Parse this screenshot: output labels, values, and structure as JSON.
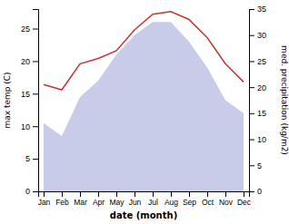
{
  "chart_data": {
    "type": "line",
    "categories": [
      "Jan",
      "Feb",
      "Mar",
      "Apr",
      "May",
      "Jun",
      "Jul",
      "Aug",
      "Sep",
      "Oct",
      "Nov",
      "Dec"
    ],
    "xlabel": "date (month)",
    "ylabel": "max temp (C)",
    "y2label": "med. precipitation (kg/m2)",
    "ylim": [
      0,
      28
    ],
    "yticks": [
      0,
      5,
      10,
      15,
      20,
      25
    ],
    "y2lim": [
      0,
      35
    ],
    "y2ticks": [
      0,
      5,
      10,
      15,
      20,
      25,
      30,
      35
    ],
    "series": [
      {
        "type": "area",
        "color": "#c8cce8",
        "values": [
          10.5,
          8.5,
          14.5,
          17.0,
          21.0,
          24.0,
          26.0,
          26.0,
          23.0,
          19.0,
          14.0,
          12.0
        ]
      },
      {
        "type": "line",
        "color": "#cc3333",
        "axis": "y2",
        "values": [
          20.5,
          19.5,
          24.5,
          25.5,
          27.0,
          31.0,
          34.0,
          34.5,
          33.0,
          29.5,
          24.5,
          21.0
        ]
      }
    ]
  }
}
